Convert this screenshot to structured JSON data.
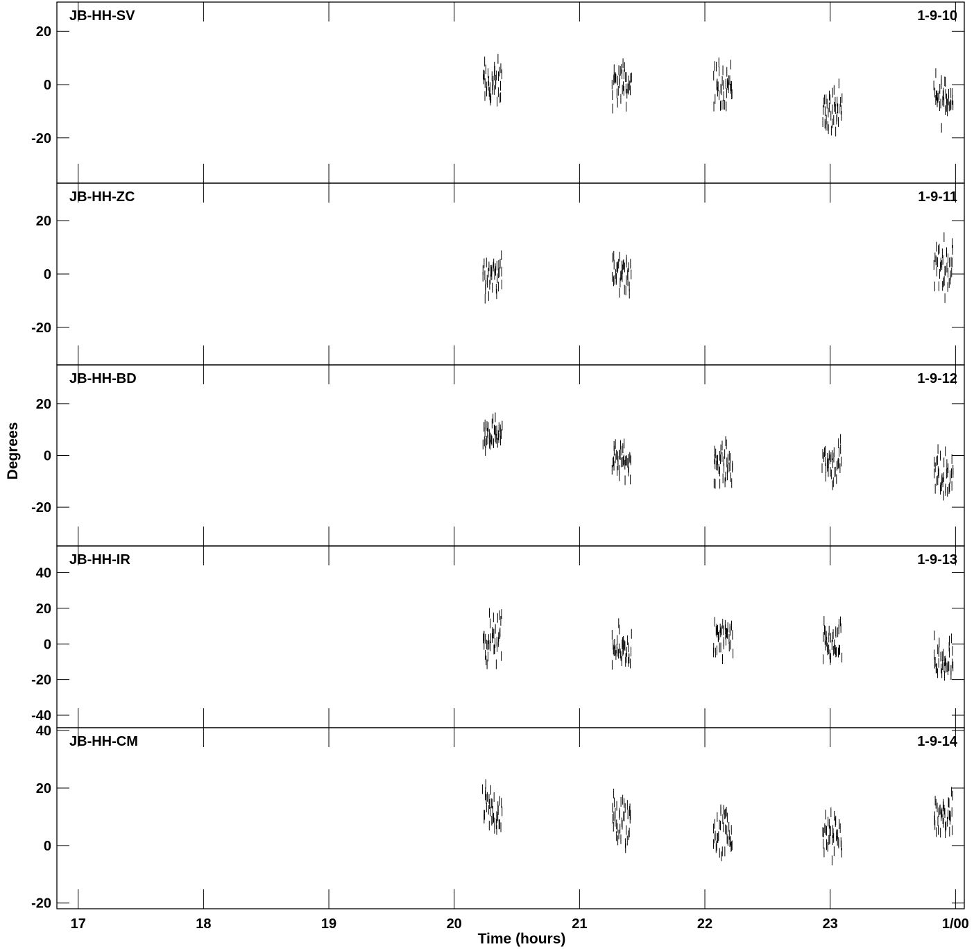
{
  "chart_data": {
    "type": "scatter",
    "marker": "vertical-bar",
    "ylabel": "Degrees",
    "xlabel": "Time (hours)",
    "xlim": [
      16.83,
      24.07
    ],
    "x_ticks": [
      {
        "value": 17,
        "label": "17"
      },
      {
        "value": 18,
        "label": "18"
      },
      {
        "value": 19,
        "label": "19"
      },
      {
        "value": 20,
        "label": "20"
      },
      {
        "value": 21,
        "label": "21"
      },
      {
        "value": 22,
        "label": "22"
      },
      {
        "value": 23,
        "label": "23"
      },
      {
        "value": 24,
        "label": "1/00"
      }
    ],
    "grid": false,
    "panels": [
      {
        "baseline": "JB-HH-SV",
        "id": "1-9-10",
        "ylim": [
          -37,
          31
        ],
        "y_ticks": [
          -20,
          0,
          20
        ],
        "clusters": [
          {
            "x_start": 20.23,
            "x_end": 20.38,
            "y_center": 0,
            "y_spread": 13
          },
          {
            "x_start": 21.26,
            "x_end": 21.41,
            "y_center": 0,
            "y_spread": 12
          },
          {
            "x_start": 22.07,
            "x_end": 22.22,
            "y_center": 0,
            "y_spread": 12
          },
          {
            "x_start": 22.94,
            "x_end": 23.09,
            "y_center": -10,
            "y_spread": 13
          },
          {
            "x_start": 23.83,
            "x_end": 23.98,
            "y_center": -5,
            "y_spread": 14
          }
        ]
      },
      {
        "baseline": "JB-HH-ZC",
        "id": "1-9-11",
        "ylim": [
          -34,
          34
        ],
        "y_ticks": [
          -20,
          0,
          20
        ],
        "clusters": [
          {
            "x_start": 20.23,
            "x_end": 20.38,
            "y_center": 0,
            "y_spread": 11
          },
          {
            "x_start": 21.26,
            "x_end": 21.41,
            "y_center": 0,
            "y_spread": 12
          },
          {
            "x_start": 23.83,
            "x_end": 23.98,
            "y_center": 3,
            "y_spread": 14
          }
        ]
      },
      {
        "baseline": "JB-HH-BD",
        "id": "1-9-12",
        "ylim": [
          -35,
          35
        ],
        "y_ticks": [
          -20,
          0,
          20
        ],
        "clusters": [
          {
            "x_start": 20.23,
            "x_end": 20.38,
            "y_center": 9,
            "y_spread": 9
          },
          {
            "x_start": 21.26,
            "x_end": 21.41,
            "y_center": -2,
            "y_spread": 10
          },
          {
            "x_start": 22.07,
            "x_end": 22.22,
            "y_center": -3,
            "y_spread": 11
          },
          {
            "x_start": 22.94,
            "x_end": 23.09,
            "y_center": -3,
            "y_spread": 12
          },
          {
            "x_start": 23.83,
            "x_end": 23.98,
            "y_center": -8,
            "y_spread": 14
          }
        ]
      },
      {
        "baseline": "JB-HH-IR",
        "id": "1-9-13",
        "ylim": [
          -47,
          55
        ],
        "y_ticks": [
          -40,
          -20,
          0,
          20,
          40
        ],
        "clusters": [
          {
            "x_start": 20.23,
            "x_end": 20.38,
            "y_center": 3,
            "y_spread": 20
          },
          {
            "x_start": 21.26,
            "x_end": 21.41,
            "y_center": -3,
            "y_spread": 17
          },
          {
            "x_start": 22.07,
            "x_end": 22.22,
            "y_center": 2,
            "y_spread": 17
          },
          {
            "x_start": 22.94,
            "x_end": 23.09,
            "y_center": 0,
            "y_spread": 17
          },
          {
            "x_start": 23.83,
            "x_end": 23.98,
            "y_center": -10,
            "y_spread": 20
          }
        ]
      },
      {
        "baseline": "JB-HH-CM",
        "id": "1-9-14",
        "ylim": [
          -22,
          41
        ],
        "y_ticks": [
          -20,
          0,
          20,
          40
        ],
        "clusters": [
          {
            "x_start": 20.23,
            "x_end": 20.38,
            "y_center": 12,
            "y_spread": 14
          },
          {
            "x_start": 21.26,
            "x_end": 21.41,
            "y_center": 8,
            "y_spread": 15
          },
          {
            "x_start": 22.07,
            "x_end": 22.22,
            "y_center": 5,
            "y_spread": 14
          },
          {
            "x_start": 22.94,
            "x_end": 23.09,
            "y_center": 3,
            "y_spread": 12
          },
          {
            "x_start": 23.83,
            "x_end": 23.98,
            "y_center": 10,
            "y_spread": 10
          }
        ]
      }
    ]
  }
}
